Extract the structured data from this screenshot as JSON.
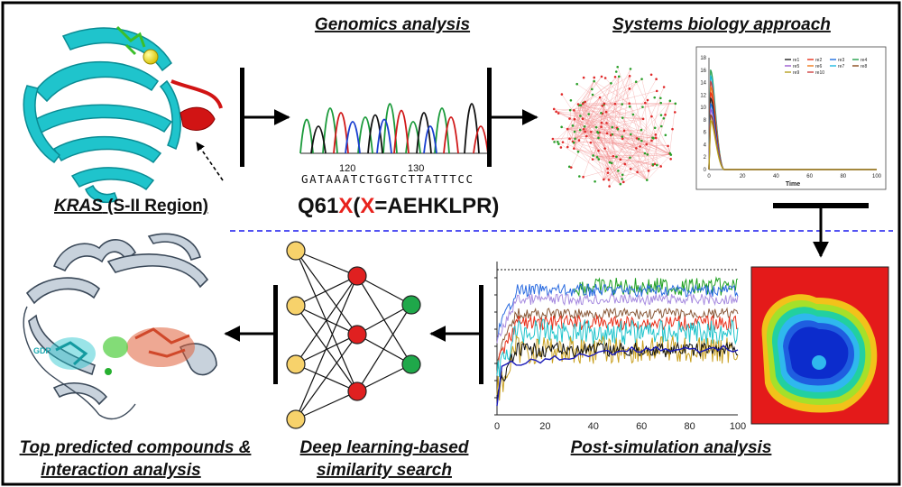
{
  "labels": {
    "genomics": "Genomics analysis",
    "systems": "Systems biology approach",
    "kras_gene": "KRAS",
    "kras_region": " (S-II Region)",
    "mutation_prefix": "Q61",
    "mutation_x1": "X",
    "mutation_paren_open": "(",
    "mutation_x2": "X",
    "mutation_rest": "=AEHKLPR)",
    "post_sim": "Post-simulation analysis",
    "deep_learning_line1": "Deep learning-based",
    "deep_learning_line2": "similarity search",
    "top_compounds_line1": "Top predicted compounds &",
    "top_compounds_line2": "interaction analysis",
    "gdp": "GDP"
  },
  "chromatogram": {
    "sequence": "GATAAATCTGGTCTTATTTCC",
    "position_labels": [
      "120",
      "130"
    ]
  },
  "colors": {
    "x_highlight": "#e8221c",
    "protein_cyan": "#1fc4cc",
    "protein_red": "#d11414",
    "arrow": "#000000",
    "divider": "#1a1aee",
    "node_yellow": "#f7d26b",
    "node_red": "#e02020",
    "node_green": "#1fa84a"
  },
  "chart_data": [
    {
      "type": "line",
      "title": "",
      "xlabel": "Time",
      "ylabel": "",
      "xlim": [
        0,
        100
      ],
      "ylim": [
        0,
        18
      ],
      "x_ticks": [
        "0",
        "20",
        "40",
        "60",
        "80",
        "100"
      ],
      "y_ticks": [
        "0",
        "2",
        "4",
        "6",
        "8",
        "10",
        "12",
        "14",
        "16",
        "18"
      ],
      "legend": [
        "re1",
        "re2",
        "re3",
        "re4",
        "re5",
        "re6",
        "re7",
        "re8",
        "re9",
        "re10"
      ],
      "legend_colors": [
        "#222222",
        "#e8301a",
        "#1f6fe0",
        "#22a04a",
        "#9b59d0",
        "#f07a1a",
        "#1fb8e0",
        "#8a4a1a",
        "#b7a020",
        "#d04040"
      ],
      "legend_placement": "top-right"
    },
    {
      "type": "line",
      "title": "",
      "xlabel": "",
      "ylabel": "",
      "xlim": [
        0,
        100
      ],
      "x_ticks": [
        "0",
        "20",
        "40",
        "60",
        "80",
        "100"
      ],
      "series_colors": [
        "#1fa020",
        "#2a6be0",
        "#a78be0",
        "#8a5a3a",
        "#e8301a",
        "#1fc4cc",
        "#c9a020",
        "#111111",
        "#1a1ab8"
      ]
    }
  ]
}
